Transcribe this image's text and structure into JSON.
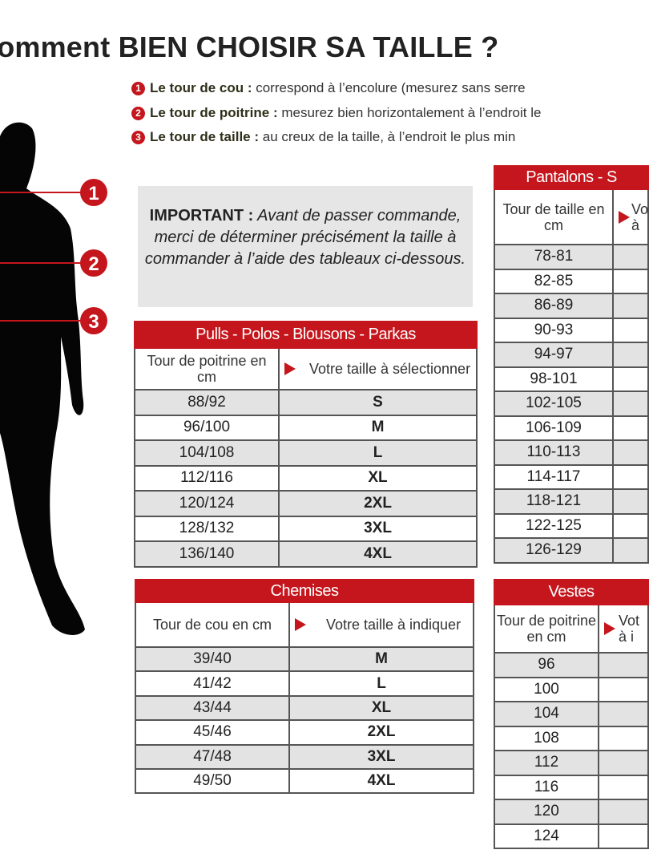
{
  "title": "Comment BIEN CHOISIR SA TAILLE ?",
  "measures": [
    {
      "num": "1",
      "label": "Le tour de cou :",
      "text": " correspond à l’encolure (mesurez sans serre"
    },
    {
      "num": "2",
      "label": "Le tour de poitrine :",
      "text": " mesurez bien horizontalement à l’endroit le"
    },
    {
      "num": "3",
      "label": "Le tour de taille :",
      "text": " au creux de la taille, à l’endroit le plus min"
    }
  ],
  "markers": [
    "1",
    "2",
    "3"
  ],
  "important": {
    "label": "IMPORTANT :",
    "text": " Avant de passer commande, merci de déterminer précisément la taille à commander à l’aide des tableaux ci-dessous."
  },
  "colors": {
    "accent": "#c4161c",
    "row_alt": "#e3e3e3",
    "box": "#e6e6e6"
  },
  "tables": [
    {
      "id": "pulls",
      "title": "Pulls - Polos - Blousons - Parkas",
      "col1": "Tour de poitrine en cm",
      "col2": "Votre taille à sélectionner",
      "rows": [
        [
          "88/92",
          "S"
        ],
        [
          "96/100",
          "M"
        ],
        [
          "104/108",
          "L"
        ],
        [
          "112/116",
          "XL"
        ],
        [
          "120/124",
          "2XL"
        ],
        [
          "128/132",
          "3XL"
        ],
        [
          "136/140",
          "4XL"
        ]
      ]
    },
    {
      "id": "chemises",
      "title": "Chemises",
      "col1": "Tour de cou en cm",
      "col2": "Votre taille à indiquer",
      "rows": [
        [
          "39/40",
          "M"
        ],
        [
          "41/42",
          "L"
        ],
        [
          "43/44",
          "XL"
        ],
        [
          "45/46",
          "2XL"
        ],
        [
          "47/48",
          "3XL"
        ],
        [
          "49/50",
          "4XL"
        ]
      ]
    },
    {
      "id": "pantalons",
      "title": "Pantalons - S",
      "col1": "Tour de taille en cm",
      "col2": "Vo à",
      "rows": [
        [
          "78-81",
          ""
        ],
        [
          "82-85",
          ""
        ],
        [
          "86-89",
          ""
        ],
        [
          "90-93",
          ""
        ],
        [
          "94-97",
          ""
        ],
        [
          "98-101",
          ""
        ],
        [
          "102-105",
          ""
        ],
        [
          "106-109",
          ""
        ],
        [
          "110-113",
          ""
        ],
        [
          "114-117",
          ""
        ],
        [
          "118-121",
          ""
        ],
        [
          "122-125",
          ""
        ],
        [
          "126-129",
          ""
        ]
      ]
    },
    {
      "id": "vestes",
      "title": "Vestes",
      "col1": "Tour de poitrine en cm",
      "col2": "Vot à i",
      "rows": [
        [
          "96",
          ""
        ],
        [
          "100",
          ""
        ],
        [
          "104",
          ""
        ],
        [
          "108",
          ""
        ],
        [
          "112",
          ""
        ],
        [
          "116",
          ""
        ],
        [
          "120",
          ""
        ],
        [
          "124",
          ""
        ]
      ]
    }
  ]
}
